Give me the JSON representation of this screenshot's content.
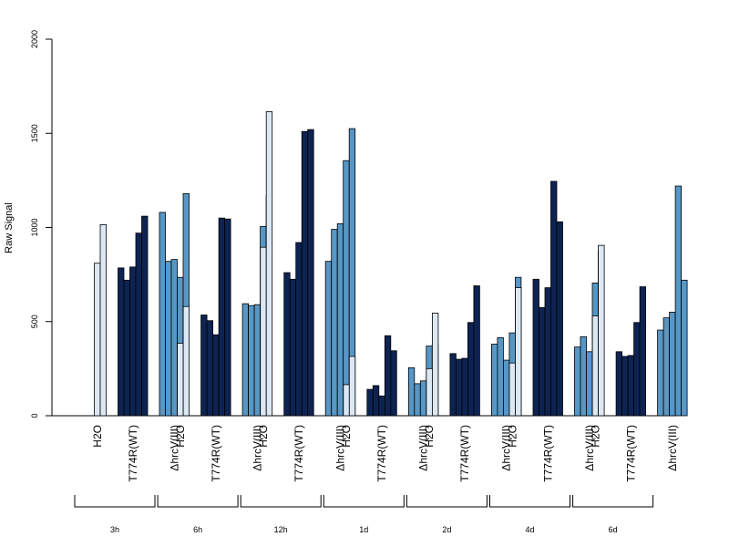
{
  "chart_data": {
    "type": "bar",
    "ylabel": "Raw Signal",
    "ylim": [
      0,
      2000
    ],
    "yticks": [
      "0",
      "500",
      "1000",
      "1500",
      "2000"
    ],
    "grid": false,
    "colors": {
      "H2O": "#dde8f5",
      "T774R(WT)": "#0d2352",
      "ΔhrcV(III)": "#5797c6"
    },
    "timepoints": [
      {
        "label": "3h",
        "groups": [
          {
            "name": "H2O",
            "values": [
              0,
              810,
              1015
            ]
          },
          {
            "name": "T774R(WT)",
            "values": [
              785,
              720,
              790,
              970,
              1060
            ]
          },
          {
            "name": "ΔhrcV(III)",
            "values": [
              1080,
              820,
              830,
              735,
              1180
            ]
          }
        ]
      },
      {
        "label": "6h",
        "groups": [
          {
            "name": "H2O",
            "values": [
              0,
              385,
              580
            ]
          },
          {
            "name": "T774R(WT)",
            "values": [
              535,
              505,
              430,
              1050,
              1045
            ]
          },
          {
            "name": "ΔhrcV(III)",
            "values": [
              595,
              585,
              590,
              1005,
              1170
            ]
          }
        ]
      },
      {
        "label": "12h",
        "groups": [
          {
            "name": "H2O",
            "values": [
              0,
              895,
              1615
            ]
          },
          {
            "name": "T774R(WT)",
            "values": [
              760,
              725,
              920,
              1510,
              1520
            ]
          },
          {
            "name": "ΔhrcV(III)",
            "values": [
              820,
              990,
              1020,
              1355,
              1525
            ]
          }
        ]
      },
      {
        "label": "1d",
        "groups": [
          {
            "name": "H2O",
            "values": [
              0,
              165,
              315
            ]
          },
          {
            "name": "T774R(WT)",
            "values": [
              140,
              160,
              105,
              425,
              345
            ]
          },
          {
            "name": "ΔhrcV(III)",
            "values": [
              255,
              170,
              185,
              370,
              380
            ]
          }
        ]
      },
      {
        "label": "2d",
        "groups": [
          {
            "name": "H2O",
            "values": [
              0,
              250,
              545
            ]
          },
          {
            "name": "T774R(WT)",
            "values": [
              330,
              300,
              305,
              495,
              690
            ]
          },
          {
            "name": "ΔhrcV(III)",
            "values": [
              380,
              415,
              295,
              440,
              735
            ]
          }
        ]
      },
      {
        "label": "4d",
        "groups": [
          {
            "name": "H2O",
            "values": [
              0,
              280,
              680
            ]
          },
          {
            "name": "T774R(WT)",
            "values": [
              725,
              575,
              680,
              1245,
              1030
            ]
          },
          {
            "name": "ΔhrcV(III)",
            "values": [
              365,
              420,
              340,
              705,
              875
            ]
          }
        ]
      },
      {
        "label": "6d",
        "groups": [
          {
            "name": "H2O",
            "values": [
              0,
              530,
              905
            ]
          },
          {
            "name": "T774R(WT)",
            "values": [
              340,
              315,
              320,
              495,
              685
            ]
          },
          {
            "name": "ΔhrcV(III)",
            "values": [
              455,
              520,
              550,
              1220,
              720
            ]
          }
        ]
      }
    ]
  }
}
